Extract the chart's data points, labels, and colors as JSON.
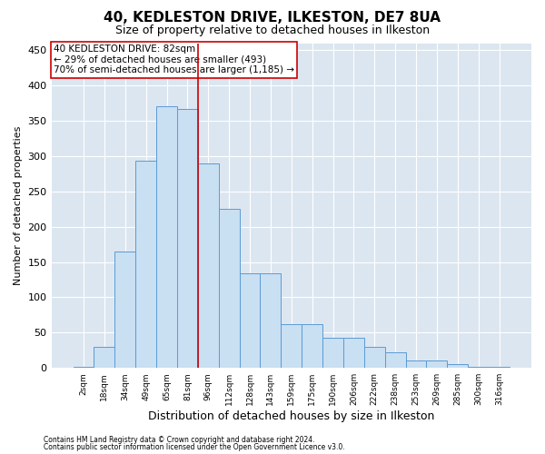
{
  "title1": "40, KEDLESTON DRIVE, ILKESTON, DE7 8UA",
  "title2": "Size of property relative to detached houses in Ilkeston",
  "xlabel": "Distribution of detached houses by size in Ilkeston",
  "ylabel": "Number of detached properties",
  "footnote1": "Contains HM Land Registry data © Crown copyright and database right 2024.",
  "footnote2": "Contains public sector information licensed under the Open Government Licence v3.0.",
  "annotation_line1": "40 KEDLESTON DRIVE: 82sqm",
  "annotation_line2": "← 29% of detached houses are smaller (493)",
  "annotation_line3": "70% of semi-detached houses are larger (1,185) →",
  "bar_categories": [
    "2sqm",
    "18sqm",
    "34sqm",
    "49sqm",
    "65sqm",
    "81sqm",
    "96sqm",
    "112sqm",
    "128sqm",
    "143sqm",
    "159sqm",
    "175sqm",
    "190sqm",
    "206sqm",
    "222sqm",
    "238sqm",
    "253sqm",
    "269sqm",
    "285sqm",
    "300sqm",
    "316sqm"
  ],
  "bar_values": [
    2,
    30,
    165,
    293,
    370,
    367,
    289,
    225,
    134,
    134,
    62,
    62,
    43,
    43,
    30,
    22,
    10,
    10,
    5,
    2,
    1
  ],
  "bar_edge_color": "#5b9bd5",
  "bar_face_color": "#c9dff2",
  "bar_width": 1.0,
  "vline_color": "#cc0000",
  "vline_x": 5.5,
  "ylim": [
    0,
    460
  ],
  "yticks": [
    0,
    50,
    100,
    150,
    200,
    250,
    300,
    350,
    400,
    450
  ],
  "grid_color": "#ffffff",
  "bg_color": "#dce6f1",
  "fig_bg_color": "#ffffff",
  "annotation_box_edge": "#cc0000",
  "title1_fontsize": 11,
  "title2_fontsize": 9,
  "ylabel_fontsize": 8,
  "xlabel_fontsize": 9,
  "xtick_fontsize": 6.5,
  "ytick_fontsize": 8,
  "footnote_fontsize": 5.5,
  "annotation_fontsize": 7.5
}
